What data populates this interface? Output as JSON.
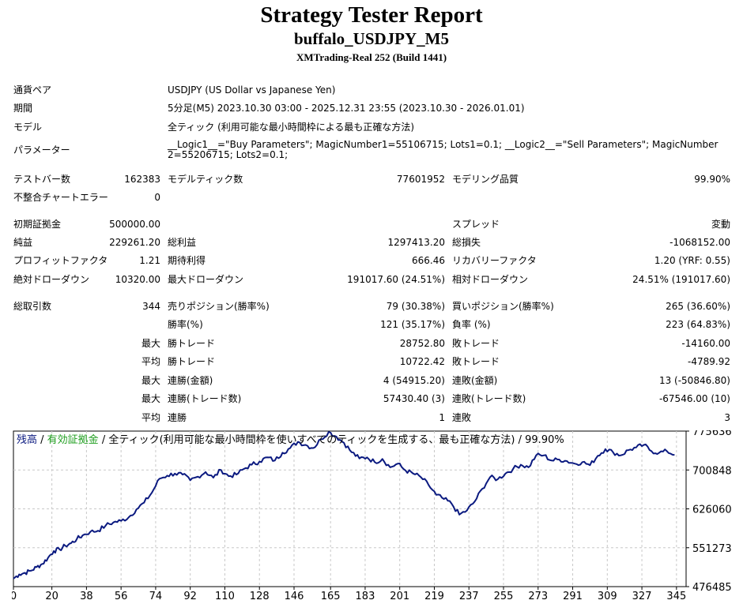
{
  "header": {
    "title": "Strategy Tester Report",
    "subtitle": "buffalo_USDJPY_M5",
    "server": "XMTrading-Real 252 (Build 1441)"
  },
  "info": {
    "symbol_label": "通貨ペア",
    "symbol_value": "USDJPY (US Dollar vs Japanese Yen)",
    "period_label": "期間",
    "period_value": "5分足(M5) 2023.10.30 03:00 - 2025.12.31 23:55 (2023.10.30 - 2026.01.01)",
    "model_label": "モデル",
    "model_value": "全ティック (利用可能な最小時間枠による最も正確な方法)",
    "params_label": "パラメーター",
    "params_value": "__Logic1__=\"Buy Parameters\"; MagicNumber1=55106715; Lots1=0.1; __Logic2__=\"Sell Parameters\"; MagicNumber2=55206715; Lots2=0.1;"
  },
  "stats": {
    "bars_label": "テストバー数",
    "bars_value": "162383",
    "ticks_label": "モデルティック数",
    "ticks_value": "77601952",
    "quality_label": "モデリング品質",
    "quality_value": "99.90%",
    "mismatch_label": "不整合チャートエラー",
    "mismatch_value": "0",
    "deposit_label": "初期証拠金",
    "deposit_value": "500000.00",
    "spread_label": "スプレッド",
    "spread_value": "変動",
    "net_label": "純益",
    "net_value": "229261.20",
    "gross_profit_label": "総利益",
    "gross_profit_value": "1297413.20",
    "gross_loss_label": "総損失",
    "gross_loss_value": "-1068152.00",
    "pf_label": "プロフィットファクタ",
    "pf_value": "1.21",
    "expected_label": "期待利得",
    "expected_value": "666.46",
    "recovery_label": "リカバリーファクタ",
    "recovery_value": "1.20 (YRF: 0.55)",
    "abs_dd_label": "絶対ドローダウン",
    "abs_dd_value": "10320.00",
    "max_dd_label": "最大ドローダウン",
    "max_dd_value": "191017.60 (24.51%)",
    "rel_dd_label": "相対ドローダウン",
    "rel_dd_value": "24.51% (191017.60)",
    "trades_label": "総取引数",
    "trades_value": "344",
    "short_label": "売りポジション(勝率%)",
    "short_value": "79 (30.38%)",
    "long_label": "買いポジション(勝率%)",
    "long_value": "265 (36.60%)",
    "winrate_label": "勝率(%)",
    "winrate_value": "121 (35.17%)",
    "lossrate_label": "負率 (%)",
    "lossrate_value": "223 (64.83%)",
    "max_label": "最大",
    "avg_label": "平均",
    "largest_win_label": "勝トレード",
    "largest_win_value": "28752.80",
    "largest_loss_label": "敗トレード",
    "largest_loss_value": "-14160.00",
    "avg_win_label": "勝トレード",
    "avg_win_value": "10722.42",
    "avg_loss_label": "敗トレード",
    "avg_loss_value": "-4789.92",
    "max_consec_wins_label": "連勝(金額)",
    "max_consec_wins_value": "4 (54915.20)",
    "max_consec_losses_label": "連敗(金額)",
    "max_consec_losses_value": "13 (-50846.80)",
    "max_consec_profit_label": "連勝(トレード数)",
    "max_consec_profit_value": "57430.40 (3)",
    "max_consec_loss_label": "連敗(トレード数)",
    "max_consec_loss_value": "-67546.00 (10)",
    "avg_consec_wins_label": "連勝",
    "avg_consec_wins_value": "1",
    "avg_consec_losses_label": "連敗",
    "avg_consec_losses_value": "3"
  },
  "chart_data": {
    "type": "line",
    "legend": {
      "balance": "残高",
      "sep1": " / ",
      "equity": "有効証拠金",
      "sep2": " / ",
      "description": "全ティック(利用可能な最小時間枠を使いすべてのティックを生成する、最も正確な方法) / 99.90%"
    },
    "colors": {
      "balance": "#0b1a80",
      "equity": "#1e9e1e",
      "grid": "#c8c8c8"
    },
    "x_ticks": [
      0,
      20,
      38,
      56,
      74,
      92,
      110,
      128,
      146,
      165,
      183,
      201,
      219,
      237,
      255,
      273,
      291,
      309,
      327,
      345
    ],
    "y_ticks": [
      "775636",
      "700848",
      "626060",
      "551273",
      "476485"
    ],
    "xlim": [
      0,
      350
    ],
    "ylim": [
      476485,
      775636
    ],
    "grid": true,
    "series": [
      {
        "x": [
          0,
          3,
          6,
          9,
          12,
          15,
          18,
          21,
          24,
          27,
          30,
          33,
          36,
          40,
          44,
          48,
          52,
          56,
          60,
          64,
          68,
          72,
          76,
          80,
          84,
          88,
          92,
          96,
          100,
          104,
          108,
          112,
          116,
          120,
          124,
          128,
          132,
          136,
          140,
          144,
          148,
          152,
          156,
          160,
          164,
          168,
          172,
          176,
          180,
          184,
          188,
          192,
          196,
          200,
          204,
          208,
          212,
          216,
          220,
          224,
          228,
          232,
          236,
          240,
          244,
          248,
          252,
          256,
          260,
          264,
          268,
          272,
          276,
          280,
          284,
          288,
          292,
          296,
          300,
          304,
          308,
          312,
          316,
          320,
          324,
          328,
          332,
          336,
          340,
          344
        ],
        "values": [
          492000,
          500000,
          503000,
          507000,
          514000,
          520000,
          532000,
          545000,
          548000,
          555000,
          560000,
          568000,
          575000,
          582000,
          584000,
          594000,
          600000,
          603000,
          610000,
          625000,
          638000,
          657000,
          684000,
          690000,
          694000,
          692000,
          681000,
          688000,
          697000,
          686000,
          701000,
          689000,
          692000,
          703000,
          711000,
          717000,
          725000,
          719000,
          734000,
          743000,
          755000,
          749000,
          743000,
          760000,
          774000,
          765000,
          753000,
          735000,
          723000,
          725000,
          716000,
          722000,
          706000,
          713000,
          700000,
          694000,
          687000,
          672000,
          653000,
          645000,
          636000,
          615000,
          623000,
          640000,
          665000,
          687000,
          683000,
          694000,
          703000,
          711000,
          706000,
          729000,
          729000,
          719000,
          721000,
          718000,
          713000,
          716000,
          710000,
          728000,
          741000,
          735000,
          729000,
          739000,
          744000,
          749000,
          737000,
          734000,
          737000,
          730000
        ]
      }
    ]
  }
}
